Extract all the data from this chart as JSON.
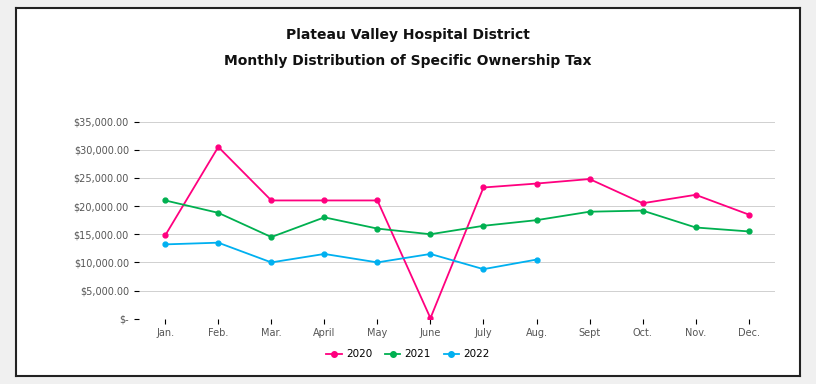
{
  "title_line1": "Plateau Valley Hospital District",
  "title_line2": "Monthly Distribution of Specific Ownership Tax",
  "months": [
    "Jan.",
    "Feb.",
    "Mar.",
    "April",
    "May",
    "June",
    "July",
    "Aug.",
    "Sept",
    "Oct.",
    "Nov.",
    "Dec."
  ],
  "series": {
    "2020": [
      14800,
      30500,
      21000,
      21000,
      21000,
      100,
      23300,
      24000,
      24800,
      20500,
      22000,
      18500
    ],
    "2021": [
      21000,
      18800,
      14500,
      18000,
      16000,
      15000,
      16500,
      17500,
      19000,
      19200,
      16200,
      15500
    ],
    "2022": [
      13200,
      13500,
      10000,
      11500,
      10000,
      11500,
      8800,
      10500,
      null,
      null,
      null,
      null
    ]
  },
  "colors": {
    "2020": "#FF007F",
    "2021": "#00B050",
    "2022": "#00B0F0"
  },
  "ylim": [
    0,
    37500
  ],
  "yticks": [
    0,
    5000,
    10000,
    15000,
    20000,
    25000,
    30000,
    35000
  ],
  "ytick_labels": [
    "$-",
    "$5,000.00",
    "$10,000.00",
    "$15,000.00",
    "$20,000.00",
    "$25,000.00",
    "$30,000.00",
    "$35,000.00"
  ],
  "legend_labels": [
    "2020",
    "2021",
    "2022"
  ],
  "background_color": "#FFFFFF",
  "grid_color": "#D0D0D0",
  "title_fontsize": 10,
  "tick_fontsize": 7,
  "border_color": "#222222",
  "outer_bg": "#F0F0F0"
}
